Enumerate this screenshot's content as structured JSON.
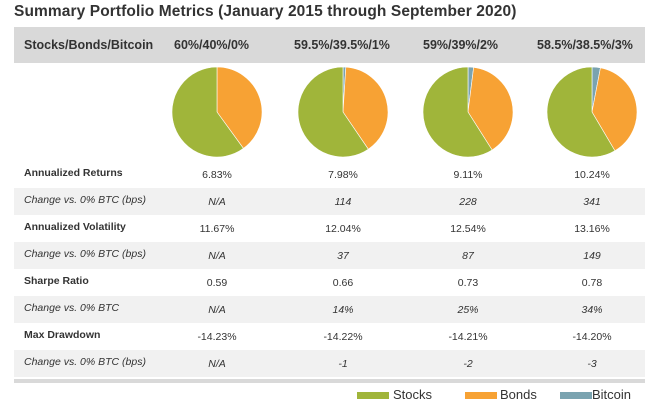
{
  "title": "Summary Portfolio Metrics (January 2015 through September 2020)",
  "header": {
    "label": "Stocks/Bonds/Bitcoin",
    "columns": [
      "60%/40%/0%",
      "59.5%/39.5%/1%",
      "59%/39%/2%",
      "58.5%/38.5%/3%"
    ]
  },
  "colors": {
    "stocks": "#a0b53a",
    "bonds": "#f7a234",
    "bitcoin": "#7aa3b0"
  },
  "rows": [
    {
      "label": "Annualized Returns",
      "values": [
        "6.83%",
        "7.98%",
        "9.11%",
        "10.24%"
      ]
    },
    {
      "label": "Change vs. 0% BTC (bps)",
      "values": [
        "N/A",
        "114",
        "228",
        "341"
      ]
    },
    {
      "label": "Annualized Volatility",
      "values": [
        "11.67%",
        "12.04%",
        "12.54%",
        "13.16%"
      ]
    },
    {
      "label": "Change vs. 0% BTC (bps)",
      "values": [
        "N/A",
        "37",
        "87",
        "149"
      ]
    },
    {
      "label": "Sharpe Ratio",
      "values": [
        "0.59",
        "0.66",
        "0.73",
        "0.78"
      ]
    },
    {
      "label": "Change vs. 0% BTC",
      "values": [
        "N/A",
        "14%",
        "25%",
        "34%"
      ]
    },
    {
      "label": "Max Drawdown",
      "values": [
        "-14.23%",
        "-14.22%",
        "-14.21%",
        "-14.20%"
      ]
    },
    {
      "label": "Change vs. 0% BTC (bps)",
      "values": [
        "N/A",
        "-1",
        "-2",
        "-3"
      ]
    }
  ],
  "legend": [
    "Stocks",
    "Bonds",
    "Bitcoin"
  ],
  "chart_data": {
    "type": "pie",
    "categories": [
      "Stocks",
      "Bonds",
      "Bitcoin"
    ],
    "pies": [
      {
        "name": "60%/40%/0%",
        "values": [
          60,
          40,
          0
        ]
      },
      {
        "name": "59.5%/39.5%/1%",
        "values": [
          59.5,
          39.5,
          1
        ]
      },
      {
        "name": "59%/39%/2%",
        "values": [
          59,
          39,
          2
        ]
      },
      {
        "name": "58.5%/38.5%/3%",
        "values": [
          58.5,
          38.5,
          3
        ]
      }
    ],
    "legend_position": "bottom-right"
  }
}
